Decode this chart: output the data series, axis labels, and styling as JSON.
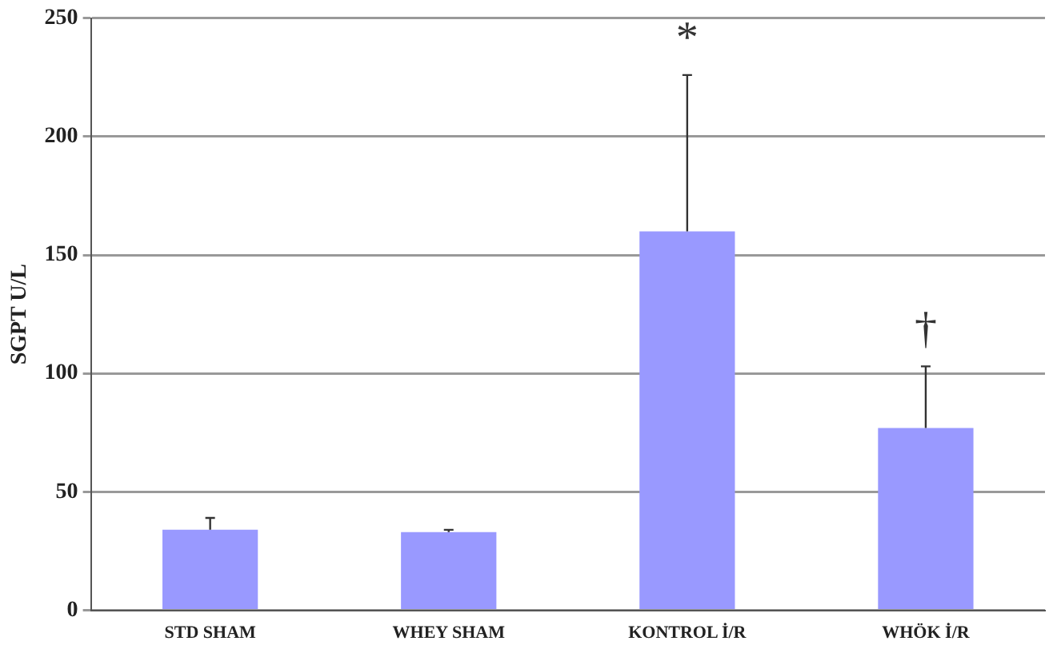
{
  "chart_data": {
    "type": "bar",
    "ylabel": "SGPT U/L",
    "categories": [
      "STD SHAM",
      "WHEY SHAM",
      "KONTROL İ/R",
      "WHÖK İ/R"
    ],
    "values": [
      34,
      33,
      160,
      77
    ],
    "errors": [
      [
        34,
        39
      ],
      [
        33,
        34
      ],
      [
        160,
        226
      ],
      [
        77,
        103
      ]
    ],
    "color": "#9999ff",
    "ylim": [
      0,
      250
    ],
    "yticks": [
      0,
      50,
      100,
      150,
      200,
      250
    ],
    "grid": "y",
    "legend": false,
    "annotations": [
      "*",
      "†"
    ]
  }
}
